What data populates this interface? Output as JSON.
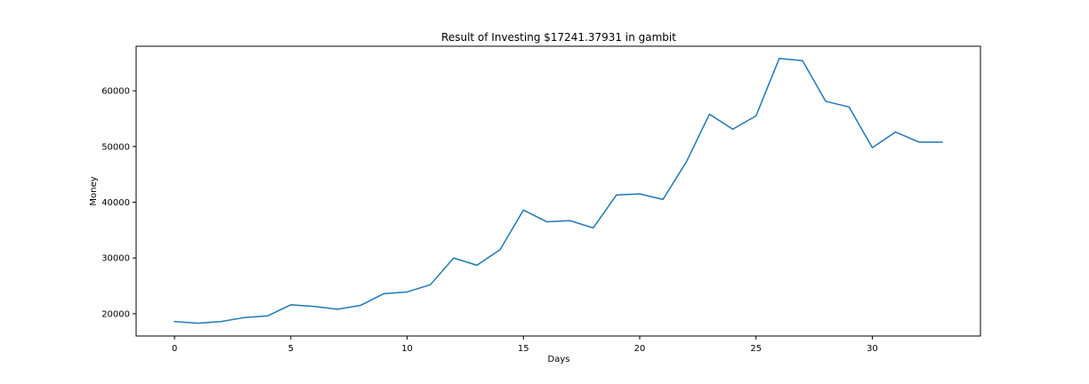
{
  "chart_data": {
    "type": "line",
    "title": "Result of Investing $17241.37931 in gambit",
    "xlabel": "Days",
    "ylabel": "Money",
    "xlim": [
      -1.65,
      34.65
    ],
    "ylim": [
      16000,
      68000
    ],
    "xticks": [
      0,
      5,
      10,
      15,
      20,
      25,
      30
    ],
    "yticks": [
      20000,
      30000,
      40000,
      50000,
      60000
    ],
    "xtick_labels": [
      "0",
      "5",
      "10",
      "15",
      "20",
      "25",
      "30"
    ],
    "ytick_labels": [
      "20000",
      "30000",
      "40000",
      "50000",
      "60000"
    ],
    "grid": false,
    "legend": "none",
    "series": [
      {
        "color": "#1f77b4",
        "x": [
          0,
          1,
          2,
          3,
          4,
          5,
          6,
          7,
          8,
          9,
          10,
          11,
          12,
          13,
          14,
          15,
          16,
          17,
          18,
          19,
          20,
          21,
          22,
          23,
          24,
          25,
          26,
          27,
          28,
          29,
          30,
          31,
          32,
          33
        ],
        "y": [
          18600,
          18300,
          18600,
          19300,
          19600,
          21600,
          21300,
          20800,
          21500,
          23600,
          23900,
          25200,
          30000,
          28700,
          31500,
          38600,
          36500,
          36700,
          35400,
          41300,
          41500,
          40500,
          47200,
          55800,
          53100,
          55500,
          65800,
          65400,
          58100,
          57100,
          49800,
          52600,
          50800,
          50800
        ]
      }
    ]
  }
}
